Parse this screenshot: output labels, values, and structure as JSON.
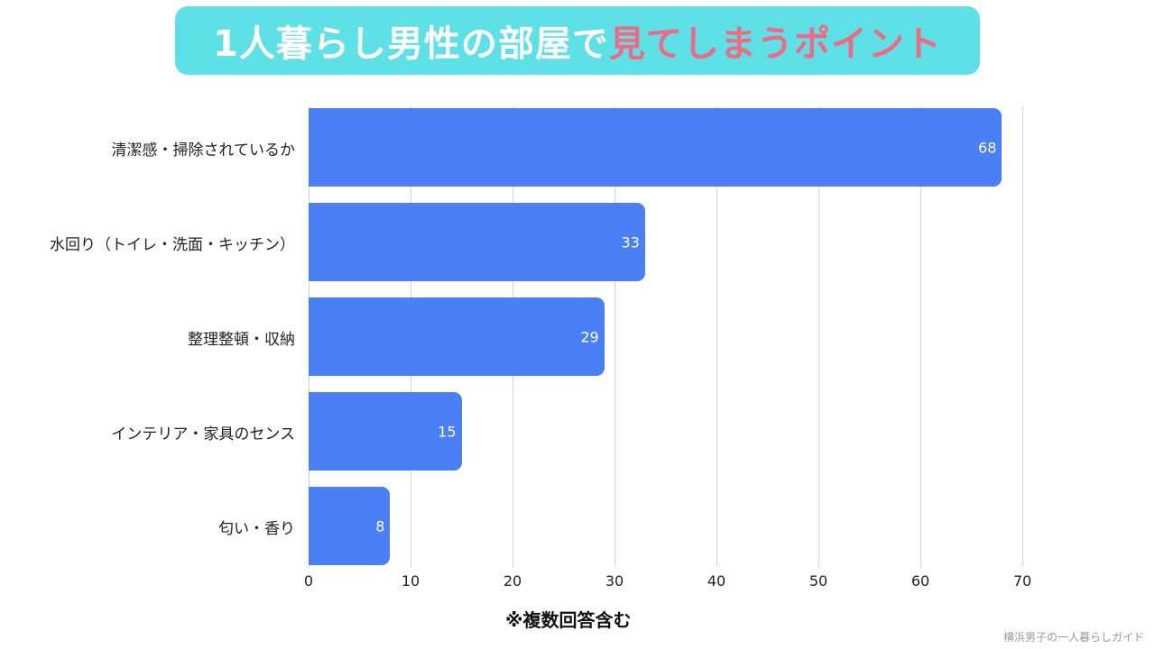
{
  "title": {
    "main": "1人暮らし男性の部屋で",
    "accent": "見てしまうポイント"
  },
  "colors": {
    "title_bg": "#5de0e6",
    "accent": "#f06a84",
    "bar": "#4a7ff5"
  },
  "note": "※複数回答含む",
  "credit": "横浜男子の一人暮らしガイド",
  "chart_data": {
    "type": "bar",
    "orientation": "horizontal",
    "title": "1人暮らし男性の部屋で見てしまうポイント",
    "categories": [
      "清潔感・掃除されているか",
      "水回り（トイレ・洗面・キッチン）",
      "整理整頓・収納",
      "インテリア・家具のセンス",
      "匂い・香り"
    ],
    "values": [
      68,
      33,
      29,
      15,
      8
    ],
    "xlabel": "※複数回答含む",
    "ylabel": "",
    "xlim": [
      0,
      70
    ],
    "xticks": [
      "0",
      "10",
      "20",
      "30",
      "40",
      "50",
      "60",
      "70"
    ],
    "grid": true,
    "legend": null,
    "data_labels": true
  }
}
